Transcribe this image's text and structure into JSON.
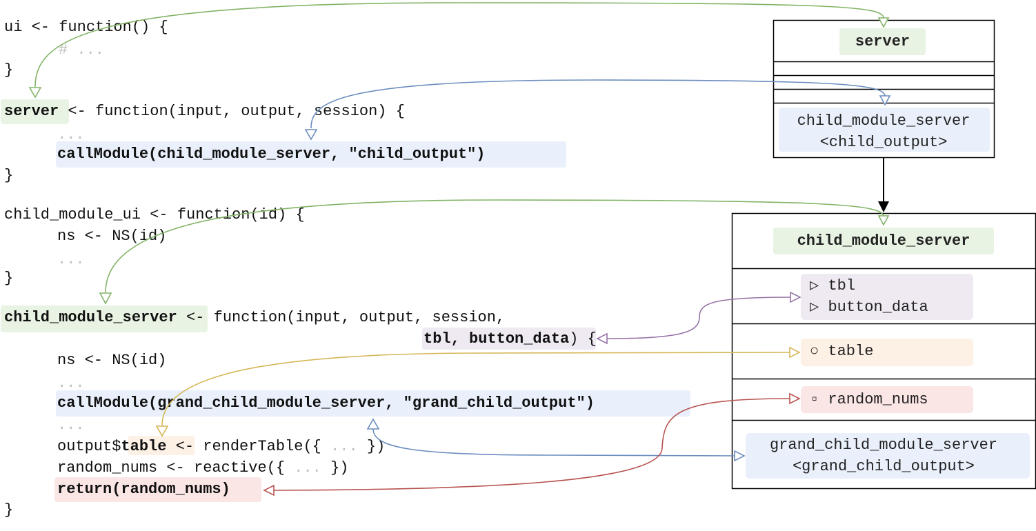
{
  "colors": {
    "green": "#82b366",
    "blue": "#6c8ebf",
    "purple": "#9673a6",
    "orange": "#d6b656",
    "red": "#b85450",
    "black": "#000000"
  },
  "code": {
    "ui_line1": "ui <- function() {",
    "ui_comment": "# ...",
    "ui_close": "}",
    "server_name": "server",
    "server_rest": " <- function(input, output, session) {",
    "server_dots": "...",
    "server_call": "callModule(child_module_server, \"child_output\")",
    "server_close": "}",
    "cmui_line1": "child_module_ui <- function(id) {",
    "cmui_ns": "ns <- NS(id)",
    "cmui_dots": "...",
    "cmui_close": "}",
    "cms_name": "child_module_server",
    "cms_rest": " <- function(input, output, session,",
    "cms_params": "tbl, button_data",
    "cms_params_end": ") {",
    "cms_ns": "ns <- NS(id)",
    "cms_dots1": "...",
    "cms_call_fn": "callModule(grand_child_module_server, \"grand_child_output\")",
    "cms_dots2": "...",
    "cms_output_prefix": "output$",
    "cms_output_table": "table",
    "cms_output_mid": " <- renderTable({ ",
    "cms_output_dots": "...",
    "cms_output_end": " })",
    "cms_random_pre": "random_nums <- reactive({ ",
    "cms_random_dots": "...",
    "cms_random_end": " })",
    "cms_return": "return(random_nums)",
    "cms_close": "}"
  },
  "server_box": {
    "title": "server",
    "module_line1": "child_module_server",
    "module_line2": "<child_output>"
  },
  "child_box": {
    "title": "child_module_server",
    "input_tbl": "▷ tbl",
    "input_button": "▷ button_data",
    "output_table": "○ table",
    "return_value": "▫ random_nums",
    "module_line1": "grand_child_module_server",
    "module_line2": "<grand_child_output>"
  }
}
